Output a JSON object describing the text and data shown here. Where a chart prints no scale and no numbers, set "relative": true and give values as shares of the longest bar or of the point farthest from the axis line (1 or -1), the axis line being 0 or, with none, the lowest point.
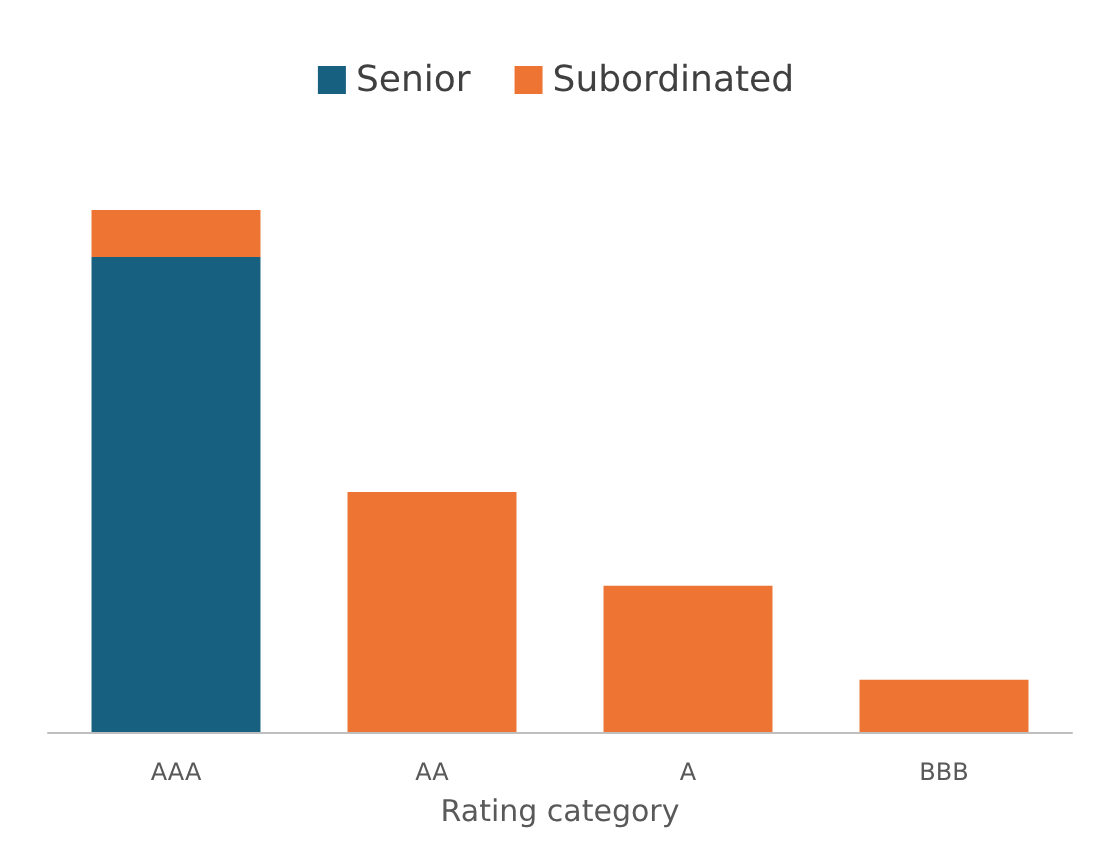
{
  "chart_data": {
    "type": "bar",
    "stacked": true,
    "relative": true,
    "xlabel": "Rating category",
    "categories": [
      "AAA",
      "AA",
      "A",
      "BBB"
    ],
    "series": [
      {
        "name": "Senior",
        "color": "#17607f",
        "values": [
          0.91,
          null,
          null,
          null
        ]
      },
      {
        "name": "Subordinated",
        "color": "#ed7433",
        "values": [
          0.09,
          0.46,
          0.28,
          0.1
        ]
      }
    ],
    "legend": "top"
  }
}
